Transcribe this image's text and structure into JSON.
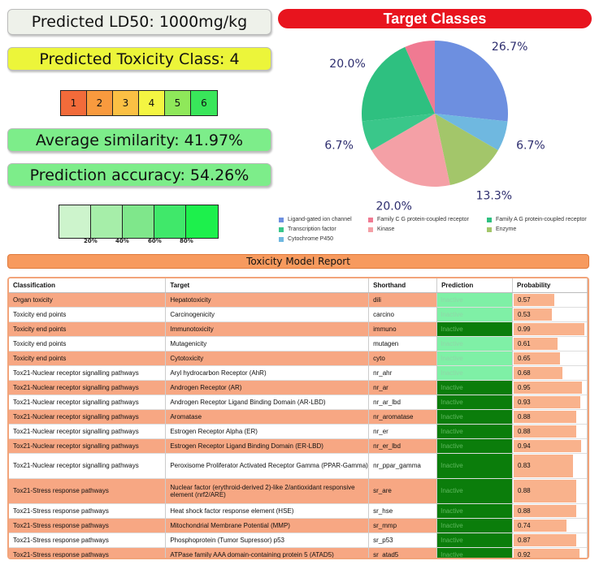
{
  "ld50": "Predicted LD50: 1000mg/kg",
  "toxicity_class": "Predicted Toxicity Class: 4",
  "class_scale": [
    {
      "label": "1",
      "color": "#f26b3a"
    },
    {
      "label": "2",
      "color": "#f89a3e"
    },
    {
      "label": "3",
      "color": "#fbc044"
    },
    {
      "label": "4",
      "color": "#f4f542"
    },
    {
      "label": "5",
      "color": "#8fe85a"
    },
    {
      "label": "6",
      "color": "#39e65a"
    }
  ],
  "average_similarity": "Average similarity: 41.97%",
  "prediction_accuracy": "Prediction accuracy: 54.26%",
  "similarity_scale": {
    "colors": [
      "#cdf4cc",
      "#a6eea9",
      "#7fe78b",
      "#40e86a",
      "#1df04c"
    ],
    "labels": [
      "20%",
      "40%",
      "60%",
      "80%"
    ]
  },
  "target_classes_title": "Target Classes",
  "chart_data": {
    "type": "pie",
    "title": "Target Classes",
    "slices": [
      {
        "label": "Ligand-gated ion channel",
        "value": 26.7,
        "text": "26.7%",
        "color": "#6d8fe0"
      },
      {
        "label": "Cytochrome P450",
        "value": 6.7,
        "text": "6.7%",
        "color": "#6fb8e0"
      },
      {
        "label": "Enzyme",
        "value": 13.3,
        "text": "13.3%",
        "color": "#a3c66a"
      },
      {
        "label": "Kinase",
        "value": 20.0,
        "text": "20.0%",
        "color": "#f4a0a6"
      },
      {
        "label": "Transcription factor",
        "value": 6.7,
        "text": "6.7%",
        "color": "#3ac78a"
      },
      {
        "label": "Family A G protein-coupled receptor",
        "value": 20.0,
        "text": "20.0%",
        "color": "#2ec080"
      },
      {
        "label": "Family C G protein-coupled receptor",
        "value": 6.7,
        "text": "6.7%",
        "color": "#f07a92"
      }
    ],
    "legend": [
      {
        "label": "Ligand-gated ion channel",
        "color": "#6d8fe0"
      },
      {
        "label": "Family C G protein-coupled receptor",
        "color": "#f07a92"
      },
      {
        "label": "Family A G protein-coupled receptor",
        "color": "#2ec080"
      },
      {
        "label": "Transcription factor",
        "color": "#3ac78a"
      },
      {
        "label": "Kinase",
        "color": "#f4a0a6"
      },
      {
        "label": "Enzyme",
        "color": "#a3c66a"
      },
      {
        "label": "Cytochrome P450",
        "color": "#6fb8e0"
      }
    ]
  },
  "report_title": "Toxicity Model Report",
  "report": {
    "headers": [
      "Classification",
      "Target",
      "Shorthand",
      "Prediction",
      "Probability"
    ],
    "rows": [
      {
        "classification": "Organ toxicity",
        "target": "Hepatotoxicity",
        "shorthand": "dili",
        "prediction": "Inactive",
        "active": false,
        "probability": 0.57,
        "prob_text": "0.57"
      },
      {
        "classification": "Toxicity end points",
        "target": "Carcinogenicity",
        "shorthand": "carcino",
        "prediction": "Inactive",
        "active": false,
        "probability": 0.53,
        "prob_text": "0.53"
      },
      {
        "classification": "Toxicity end points",
        "target": "Immunotoxicity",
        "shorthand": "immuno",
        "prediction": "Inactive",
        "active": true,
        "probability": 0.99,
        "prob_text": "0.99"
      },
      {
        "classification": "Toxicity end points",
        "target": "Mutagenicity",
        "shorthand": "mutagen",
        "prediction": "Inactive",
        "active": false,
        "probability": 0.61,
        "prob_text": "0.61"
      },
      {
        "classification": "Toxicity end points",
        "target": "Cytotoxicity",
        "shorthand": "cyto",
        "prediction": "Inactive",
        "active": false,
        "probability": 0.65,
        "prob_text": "0.65"
      },
      {
        "classification": "Tox21-Nuclear receptor signalling pathways",
        "target": "Aryl hydrocarbon Receptor (AhR)",
        "shorthand": "nr_ahr",
        "prediction": "Inactive",
        "active": false,
        "probability": 0.68,
        "prob_text": "0.68"
      },
      {
        "classification": "Tox21-Nuclear receptor signalling pathways",
        "target": "Androgen Receptor (AR)",
        "shorthand": "nr_ar",
        "prediction": "Inactive",
        "active": true,
        "probability": 0.95,
        "prob_text": "0.95"
      },
      {
        "classification": "Tox21-Nuclear receptor signalling pathways",
        "target": "Androgen Receptor Ligand Binding Domain (AR-LBD)",
        "shorthand": "nr_ar_lbd",
        "prediction": "Inactive",
        "active": true,
        "probability": 0.93,
        "prob_text": "0.93"
      },
      {
        "classification": "Tox21-Nuclear receptor signalling pathways",
        "target": "Aromatase",
        "shorthand": "nr_aromatase",
        "prediction": "Inactive",
        "active": true,
        "probability": 0.88,
        "prob_text": "0.88"
      },
      {
        "classification": "Tox21-Nuclear receptor signalling pathways",
        "target": "Estrogen Receptor Alpha (ER)",
        "shorthand": "nr_er",
        "prediction": "Inactive",
        "active": true,
        "probability": 0.88,
        "prob_text": "0.88"
      },
      {
        "classification": "Tox21-Nuclear receptor signalling pathways",
        "target": "Estrogen Receptor Ligand Binding Domain (ER-LBD)",
        "shorthand": "nr_er_lbd",
        "prediction": "Inactive",
        "active": true,
        "probability": 0.94,
        "prob_text": "0.94"
      },
      {
        "classification": "Tox21-Nuclear receptor signalling pathways",
        "target": "Peroxisome Proliferator Activated Receptor Gamma (PPAR-Gamma)",
        "shorthand": "nr_ppar_gamma",
        "prediction": "Inactive",
        "active": true,
        "probability": 0.83,
        "prob_text": "0.83",
        "tall": true
      },
      {
        "classification": "Tox21-Stress response pathways",
        "target": "Nuclear factor (erythroid-derived 2)-like 2/antioxidant responsive element (nrf2/ARE)",
        "shorthand": "sr_are",
        "prediction": "Inactive",
        "active": true,
        "probability": 0.88,
        "prob_text": "0.88",
        "tall": true
      },
      {
        "classification": "Tox21-Stress response pathways",
        "target": "Heat shock factor response element (HSE)",
        "shorthand": "sr_hse",
        "prediction": "Inactive",
        "active": true,
        "probability": 0.88,
        "prob_text": "0.88"
      },
      {
        "classification": "Tox21-Stress response pathways",
        "target": "Mitochondrial Membrane Potential (MMP)",
        "shorthand": "sr_mmp",
        "prediction": "Inactive",
        "active": true,
        "probability": 0.74,
        "prob_text": "0.74"
      },
      {
        "classification": "Tox21-Stress response pathways",
        "target": "Phosphoprotein (Tumor Supressor) p53",
        "shorthand": "sr_p53",
        "prediction": "Inactive",
        "active": true,
        "probability": 0.87,
        "prob_text": "0.87"
      },
      {
        "classification": "Tox21-Stress response pathways",
        "target": "ATPase family AAA domain-containing protein 5 (ATAD5)",
        "shorthand": "sr_atad5",
        "prediction": "Inactive",
        "active": true,
        "probability": 0.92,
        "prob_text": "0.92"
      }
    ]
  },
  "colors": {
    "inactive_light": "#7ff0a6",
    "inactive_dark": "#0b7d0b",
    "row_highlight": "#f7a783"
  }
}
